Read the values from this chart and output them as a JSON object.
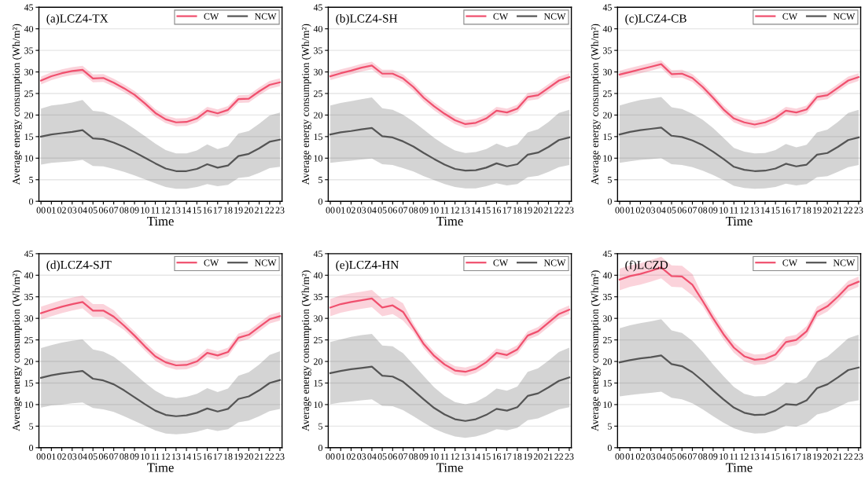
{
  "chart_data": [
    {
      "type": "line",
      "title": "(a)LCZ4-TX",
      "xlabel": "Time",
      "ylabel": "Average energy consumption (Wh/m²)",
      "categories": [
        "00",
        "01",
        "02",
        "03",
        "04",
        "05",
        "06",
        "07",
        "08",
        "09",
        "10",
        "11",
        "12",
        "13",
        "14",
        "15",
        "16",
        "17",
        "18",
        "19",
        "20",
        "21",
        "22",
        "23"
      ],
      "ylim": [
        0,
        45
      ],
      "yticks": [
        0,
        5,
        10,
        15,
        20,
        25,
        30,
        35,
        40,
        45
      ],
      "grid": "y",
      "legend": "top right",
      "series": [
        {
          "name": "CW",
          "color": "#f0506e",
          "values": [
            28,
            29,
            29.7,
            30.2,
            30.5,
            28.5,
            28.6,
            27.5,
            26.2,
            24.7,
            22.7,
            20.5,
            19,
            18.3,
            18.4,
            19.2,
            21,
            20.4,
            21.2,
            23.7,
            23.8,
            25.5,
            27,
            27.6
          ],
          "lower": [
            27.1,
            28.1,
            28.8,
            29.3,
            29.6,
            27.6,
            27.7,
            26.6,
            25.3,
            23.8,
            21.8,
            19.6,
            18.1,
            17.4,
            17.5,
            18.3,
            20.1,
            19.5,
            20.3,
            22.8,
            22.9,
            24.6,
            26.1,
            26.7
          ],
          "upper": [
            28.9,
            29.9,
            30.6,
            31.1,
            31.4,
            29.4,
            29.5,
            28.4,
            27.1,
            25.6,
            23.6,
            21.4,
            19.9,
            19.2,
            19.3,
            20.1,
            21.9,
            21.3,
            22.1,
            24.6,
            24.7,
            26.4,
            27.9,
            28.5
          ]
        },
        {
          "name": "NCW",
          "color": "#555555",
          "values": [
            15,
            15.5,
            15.8,
            16.1,
            16.5,
            14.6,
            14.4,
            13.6,
            12.6,
            11.4,
            10.1,
            8.8,
            7.6,
            7.0,
            7.0,
            7.5,
            8.6,
            7.8,
            8.3,
            10.5,
            11,
            12.3,
            13.8,
            14.3
          ],
          "lower": [
            8.5,
            8.9,
            9.1,
            9.3,
            9.6,
            8.2,
            8.1,
            7.5,
            6.8,
            6,
            5.1,
            4.2,
            3.3,
            2.9,
            2.9,
            3.3,
            4,
            3.5,
            3.8,
            5.4,
            5.7,
            6.6,
            7.7,
            8
          ],
          "upper": [
            21.5,
            22.2,
            22.5,
            22.9,
            23.5,
            21,
            20.7,
            19.7,
            18.4,
            16.8,
            15.1,
            13.4,
            11.9,
            11.1,
            11.1,
            11.8,
            13.2,
            12.1,
            12.8,
            15.7,
            16.3,
            18,
            19.9,
            20.6
          ]
        }
      ]
    },
    {
      "type": "line",
      "title": "(b)LCZ4-SH",
      "xlabel": "Time",
      "ylabel": "Average energy consumption (Wh/m²)",
      "categories": [
        "00",
        "01",
        "02",
        "03",
        "04",
        "05",
        "06",
        "07",
        "08",
        "09",
        "10",
        "11",
        "12",
        "13",
        "14",
        "15",
        "16",
        "17",
        "18",
        "19",
        "20",
        "21",
        "22",
        "23"
      ],
      "ylim": [
        0,
        45
      ],
      "yticks": [
        0,
        5,
        10,
        15,
        20,
        25,
        30,
        35,
        40,
        45
      ],
      "grid": "y",
      "legend": "top right",
      "series": [
        {
          "name": "CW",
          "color": "#f0506e",
          "values": [
            29,
            29.7,
            30.3,
            31,
            31.5,
            29.6,
            29.6,
            28.5,
            26.5,
            24,
            22,
            20.3,
            18.8,
            17.9,
            18.2,
            19.2,
            21,
            20.6,
            21.5,
            24.2,
            24.6,
            26.3,
            28,
            28.8
          ],
          "lower": [
            28.1,
            28.8,
            29.4,
            30.1,
            30.6,
            28.7,
            28.7,
            27.6,
            25.6,
            23.1,
            21.1,
            19.4,
            17.9,
            17,
            17.3,
            18.3,
            20.1,
            19.7,
            20.6,
            23.3,
            23.7,
            25.4,
            27.1,
            27.9
          ],
          "upper": [
            29.9,
            30.6,
            31.2,
            31.9,
            32.4,
            30.5,
            30.5,
            29.4,
            27.4,
            24.9,
            22.9,
            21.2,
            19.7,
            18.8,
            19.1,
            20.1,
            21.9,
            21.5,
            22.4,
            25.1,
            25.5,
            27.2,
            28.9,
            29.7
          ]
        },
        {
          "name": "NCW",
          "color": "#555555",
          "values": [
            15.5,
            16,
            16.3,
            16.7,
            17,
            15.1,
            14.8,
            13.9,
            12.7,
            11.2,
            9.8,
            8.5,
            7.5,
            7.1,
            7.2,
            7.8,
            8.8,
            8.1,
            8.6,
            10.8,
            11.3,
            12.6,
            14.2,
            14.8
          ],
          "lower": [
            8.9,
            9.2,
            9.4,
            9.7,
            9.9,
            8.6,
            8.4,
            7.7,
            6.9,
            5.8,
            4.9,
            4,
            3.3,
            3,
            3,
            3.5,
            4.2,
            3.7,
            4,
            5.6,
            5.9,
            6.8,
            7.9,
            8.4
          ],
          "upper": [
            22.2,
            22.8,
            23.2,
            23.7,
            24.1,
            21.6,
            21.2,
            20.1,
            18.5,
            16.6,
            14.7,
            13.1,
            11.8,
            11.2,
            11.4,
            12.1,
            13.4,
            12.5,
            13.2,
            16,
            16.7,
            18.4,
            20.5,
            21.2
          ]
        }
      ]
    },
    {
      "type": "line",
      "title": "(c)LCZ4-CB",
      "xlabel": "Time",
      "ylabel": "Average energy consumption (Wh/m²)",
      "categories": [
        "00",
        "01",
        "02",
        "03",
        "04",
        "05",
        "06",
        "07",
        "08",
        "09",
        "10",
        "11",
        "12",
        "13",
        "14",
        "15",
        "16",
        "17",
        "18",
        "19",
        "20",
        "21",
        "22",
        "23"
      ],
      "ylim": [
        0,
        45
      ],
      "yticks": [
        0,
        5,
        10,
        15,
        20,
        25,
        30,
        35,
        40,
        45
      ],
      "grid": "y",
      "legend": "top right",
      "series": [
        {
          "name": "CW",
          "color": "#f0506e",
          "values": [
            29.4,
            30,
            30.6,
            31.2,
            31.8,
            29.5,
            29.6,
            28.6,
            26.5,
            24,
            21.3,
            19.2,
            18.3,
            17.8,
            18.3,
            19.3,
            21,
            20.6,
            21.3,
            24.2,
            24.6,
            26.3,
            28,
            28.8
          ],
          "lower": [
            28.5,
            29.1,
            29.7,
            30.3,
            30.9,
            28.6,
            28.7,
            27.7,
            25.6,
            23.1,
            20.4,
            18.3,
            17.4,
            16.9,
            17.4,
            18.4,
            20.1,
            19.7,
            20.4,
            23.3,
            23.7,
            25.4,
            27.1,
            27.9
          ],
          "upper": [
            30.3,
            30.9,
            31.5,
            32.1,
            32.7,
            30.4,
            30.5,
            29.5,
            27.4,
            24.9,
            22.2,
            20.1,
            19.2,
            18.7,
            19.2,
            20.2,
            21.9,
            21.5,
            22.2,
            25.1,
            25.5,
            27.2,
            28.9,
            29.7
          ]
        },
        {
          "name": "NCW",
          "color": "#555555",
          "values": [
            15.5,
            16.1,
            16.5,
            16.8,
            17.1,
            15.2,
            14.9,
            14.1,
            13,
            11.5,
            9.8,
            8,
            7.3,
            7,
            7.1,
            7.6,
            8.7,
            8.1,
            8.5,
            10.8,
            11.2,
            12.6,
            14.2,
            14.8
          ],
          "lower": [
            8.9,
            9.3,
            9.6,
            9.8,
            10,
            8.6,
            8.4,
            7.9,
            7.1,
            6.1,
            4.9,
            3.6,
            3.1,
            2.9,
            3,
            3.3,
            4.1,
            3.7,
            4,
            5.6,
            5.8,
            6.8,
            7.9,
            8.4
          ],
          "upper": [
            22.2,
            22.9,
            23.5,
            23.8,
            24.2,
            21.8,
            21.4,
            20.3,
            18.9,
            17,
            14.7,
            12.4,
            11.5,
            11.1,
            11.2,
            11.9,
            13.3,
            12.5,
            13.1,
            16,
            16.6,
            18.4,
            20.5,
            21.2
          ]
        }
      ]
    },
    {
      "type": "line",
      "title": "(d)LCZ4-SJT",
      "xlabel": "Time",
      "ylabel": "Average energy consumption (Wh/m²)",
      "categories": [
        "00",
        "01",
        "02",
        "03",
        "04",
        "05",
        "06",
        "07",
        "08",
        "09",
        "10",
        "11",
        "12",
        "13",
        "14",
        "15",
        "16",
        "17",
        "18",
        "19",
        "20",
        "21",
        "22",
        "23"
      ],
      "ylim": [
        0,
        45
      ],
      "yticks": [
        0,
        5,
        10,
        15,
        20,
        25,
        30,
        35,
        40,
        45
      ],
      "grid": "y",
      "legend": "top right",
      "series": [
        {
          "name": "CW",
          "color": "#f0506e",
          "values": [
            31.2,
            32,
            32.7,
            33.3,
            33.8,
            31.8,
            31.8,
            30.4,
            28.3,
            26,
            23.5,
            21.2,
            19.8,
            19.1,
            19.2,
            20,
            22,
            21.4,
            22.2,
            25.5,
            26.2,
            28,
            29.8,
            30.5
          ],
          "lower": [
            29.7,
            30.5,
            31.2,
            31.8,
            32.3,
            30.3,
            30.3,
            28.9,
            27.3,
            25,
            22.5,
            20.2,
            18.8,
            18.1,
            18.2,
            19,
            21,
            20.4,
            21.2,
            24.5,
            25.2,
            27,
            28.8,
            29.5
          ],
          "upper": [
            32.7,
            33.5,
            34.2,
            34.8,
            35.3,
            33.3,
            33.3,
            31.9,
            29.3,
            27,
            24.5,
            22.2,
            20.8,
            20.1,
            20.2,
            21,
            23,
            22.4,
            23.2,
            26.5,
            27.2,
            29,
            30.8,
            31.5
          ]
        },
        {
          "name": "NCW",
          "color": "#555555",
          "values": [
            16.2,
            16.8,
            17.2,
            17.5,
            17.8,
            16,
            15.6,
            14.7,
            13.3,
            11.7,
            10.1,
            8.6,
            7.6,
            7.3,
            7.5,
            8.1,
            9.1,
            8.4,
            9,
            11.3,
            11.9,
            13.3,
            15,
            15.7
          ],
          "lower": [
            9.3,
            9.8,
            10,
            10.3,
            10.5,
            9.2,
            8.9,
            8.3,
            7.3,
            6.2,
            5.1,
            4,
            3.3,
            3.1,
            3.3,
            3.7,
            4.4,
            3.9,
            4.3,
            5.9,
            6.3,
            7.3,
            8.5,
            9
          ],
          "upper": [
            23.1,
            23.8,
            24.4,
            24.8,
            25.1,
            22.8,
            22.3,
            21.1,
            19.3,
            17.2,
            15.1,
            13.2,
            11.9,
            11.5,
            11.8,
            12.5,
            13.8,
            12.9,
            13.7,
            16.7,
            17.5,
            19.3,
            21.5,
            22.4
          ]
        }
      ]
    },
    {
      "type": "line",
      "title": "(e)LCZ4-HN",
      "xlabel": "Time",
      "ylabel": "Average energy consumption (Wh/m²)",
      "categories": [
        "00",
        "01",
        "02",
        "03",
        "04",
        "05",
        "06",
        "07",
        "08",
        "09",
        "10",
        "11",
        "12",
        "13",
        "14",
        "15",
        "16",
        "17",
        "18",
        "19",
        "20",
        "21",
        "22",
        "23"
      ],
      "ylim": [
        0,
        45
      ],
      "yticks": [
        0,
        5,
        10,
        15,
        20,
        25,
        30,
        35,
        40,
        45
      ],
      "grid": "y",
      "legend": "top right",
      "series": [
        {
          "name": "CW",
          "color": "#f0506e",
          "values": [
            32.5,
            33.3,
            33.8,
            34.2,
            34.6,
            32.5,
            33,
            31.5,
            27.8,
            24,
            21.3,
            19.3,
            17.9,
            17.6,
            18.3,
            19.8,
            22,
            21.5,
            22.8,
            26,
            27,
            29,
            31,
            32
          ],
          "lower": [
            30.5,
            31.3,
            31.8,
            32.2,
            32.6,
            30.5,
            31,
            29.5,
            26.8,
            23,
            20.3,
            18.3,
            16.9,
            16.6,
            17.3,
            18.8,
            21,
            20.5,
            21.8,
            25,
            26,
            28,
            30,
            31
          ],
          "upper": [
            34.5,
            35.3,
            35.8,
            36.2,
            36.6,
            34.5,
            35,
            33.5,
            28.8,
            25,
            22.3,
            20.3,
            18.9,
            18.6,
            19.3,
            20.8,
            23,
            22.5,
            23.8,
            27,
            28,
            30,
            32,
            33
          ]
        },
        {
          "name": "NCW",
          "color": "#555555",
          "values": [
            17.3,
            17.8,
            18.2,
            18.5,
            18.8,
            16.7,
            16.5,
            15.3,
            13.3,
            11.2,
            9.2,
            7.7,
            6.6,
            6.2,
            6.6,
            7.6,
            9,
            8.6,
            9.4,
            12,
            12.6,
            14,
            15.5,
            16.3
          ],
          "lower": [
            10.1,
            10.5,
            10.7,
            11,
            11.2,
            9.7,
            9.6,
            8.7,
            7.3,
            5.8,
            4.4,
            3.4,
            2.6,
            2.3,
            2.6,
            3.3,
            4.3,
            4,
            4.6,
            6.4,
            6.8,
            7.8,
            8.9,
            9.4
          ],
          "upper": [
            24.5,
            25.1,
            25.7,
            26.1,
            26.4,
            23.7,
            23.5,
            21.9,
            19.3,
            16.6,
            14,
            12,
            10.6,
            10.1,
            10.6,
            11.9,
            13.7,
            13.2,
            14.2,
            17.6,
            18.4,
            20.2,
            22.2,
            23.2
          ]
        }
      ]
    },
    {
      "type": "line",
      "title": "(f)LCZD",
      "xlabel": "Time",
      "ylabel": "Average energy consumption (Wh/m²)",
      "categories": [
        "00",
        "01",
        "02",
        "03",
        "04",
        "05",
        "06",
        "07",
        "08",
        "09",
        "10",
        "11",
        "12",
        "13",
        "14",
        "15",
        "16",
        "17",
        "18",
        "19",
        "20",
        "21",
        "22",
        "23"
      ],
      "ylim": [
        0,
        45
      ],
      "yticks": [
        0,
        5,
        10,
        15,
        20,
        25,
        30,
        35,
        40,
        45
      ],
      "grid": "y",
      "legend": "top right",
      "series": [
        {
          "name": "CW",
          "color": "#f0506e",
          "values": [
            39,
            39.8,
            40.3,
            41,
            41.8,
            39.8,
            39.7,
            37.8,
            34,
            30,
            26.3,
            23.2,
            21.2,
            20.4,
            20.6,
            21.6,
            24.5,
            25,
            27,
            31.5,
            32.8,
            35,
            37.5,
            38.5
          ],
          "lower": [
            36.5,
            37.3,
            37.8,
            38.5,
            39.3,
            37.3,
            37.2,
            35.3,
            32.8,
            28.8,
            25.1,
            22,
            20,
            19.2,
            19.4,
            20.4,
            23.3,
            23.8,
            25.8,
            30.3,
            31.6,
            33.8,
            36.3,
            37.3
          ],
          "upper": [
            41.5,
            42.3,
            42.8,
            43.5,
            44.3,
            42.3,
            42.2,
            40.3,
            35.2,
            31.2,
            27.5,
            24.4,
            22.4,
            21.6,
            21.8,
            22.8,
            25.7,
            26.2,
            28.2,
            32.7,
            34,
            36.2,
            38.7,
            39.7
          ]
        },
        {
          "name": "NCW",
          "color": "#555555",
          "values": [
            19.8,
            20.3,
            20.7,
            21,
            21.4,
            19.4,
            18.9,
            17.5,
            15.5,
            13.3,
            11.2,
            9.3,
            8.1,
            7.6,
            7.7,
            8.6,
            10.1,
            9.9,
            11,
            13.8,
            14.7,
            16.3,
            18,
            18.6
          ],
          "lower": [
            11.9,
            12.2,
            12.5,
            12.7,
            13,
            11.6,
            11.2,
            10.3,
            8.9,
            7.3,
            5.8,
            4.5,
            3.7,
            3.3,
            3.4,
            4,
            5.1,
            4.9,
            5.7,
            7.7,
            8.3,
            9.4,
            10.6,
            11
          ],
          "upper": [
            27.7,
            28.4,
            28.9,
            29.3,
            29.8,
            27.2,
            26.6,
            24.8,
            22.2,
            19.3,
            16.6,
            14.1,
            12.5,
            11.9,
            12,
            13.2,
            15.1,
            14.9,
            16.3,
            19.9,
            21.1,
            23.2,
            25.4,
            26.2
          ]
        }
      ]
    }
  ]
}
